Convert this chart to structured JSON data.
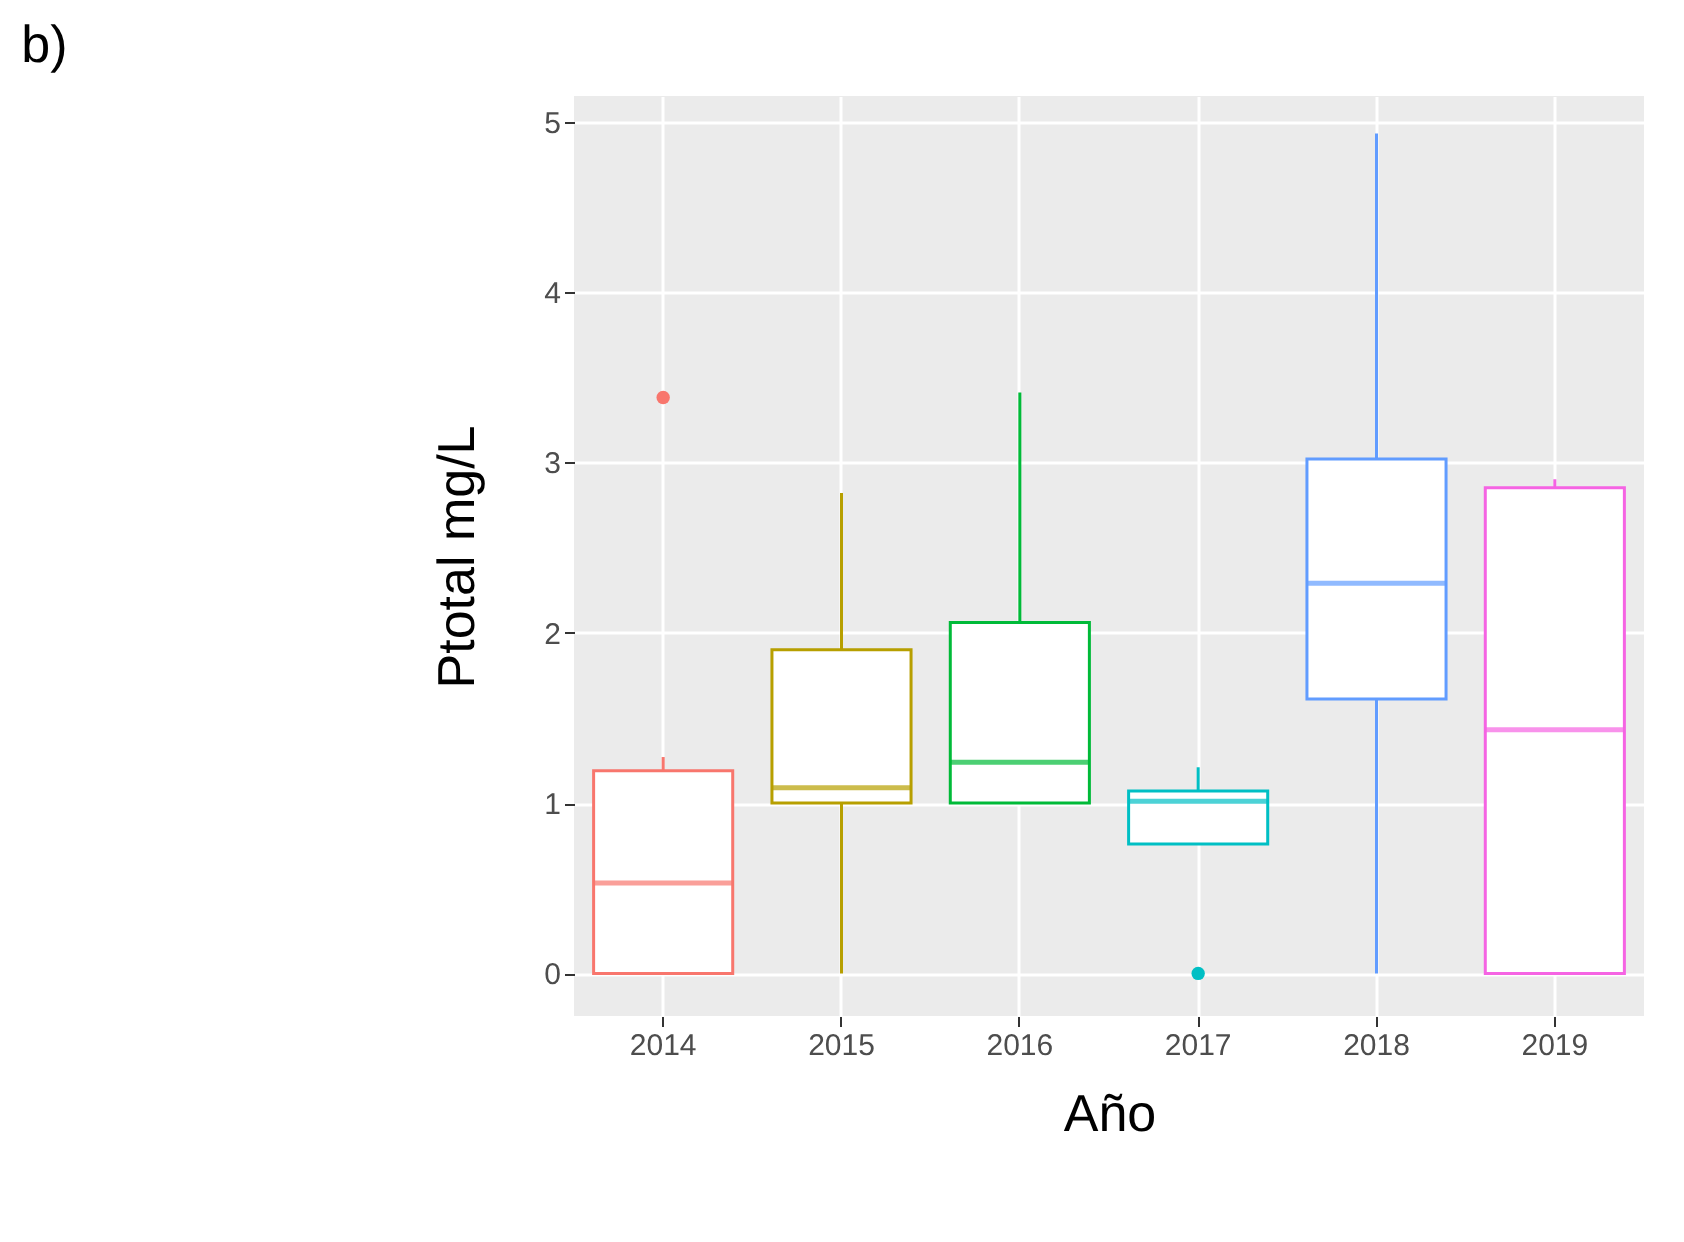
{
  "chart_data": {
    "type": "box",
    "title": "b)",
    "xlabel": "Año",
    "ylabel": "Ptotal mg/L",
    "categories": [
      "2014",
      "2015",
      "2016",
      "2017",
      "2018",
      "2019"
    ],
    "colors": [
      "#f8766d",
      "#b79f00",
      "#00ba38",
      "#00bfc4",
      "#619cff",
      "#f564e3"
    ],
    "boxes": [
      {
        "low": 0,
        "q1": 0,
        "median": 0.53,
        "q3": 1.19,
        "high": 1.27,
        "outliers": [
          3.38
        ]
      },
      {
        "low": 0,
        "q1": 1.0,
        "median": 1.09,
        "q3": 1.9,
        "high": 2.82
      },
      {
        "low": 1.0,
        "q1": 1.0,
        "median": 1.24,
        "q3": 2.06,
        "high": 3.41
      },
      {
        "low": 0.76,
        "q1": 0.76,
        "median": 1.01,
        "q3": 1.07,
        "high": 1.21,
        "outliers": [
          0
        ]
      },
      {
        "low": 0,
        "q1": 1.61,
        "median": 2.29,
        "q3": 3.02,
        "high": 4.93
      },
      {
        "low": 0,
        "q1": 0,
        "median": 1.43,
        "q3": 2.85,
        "high": 2.9
      }
    ],
    "ylim": [
      -0.25,
      5.15
    ],
    "yticks": [
      0,
      1,
      2,
      3,
      4,
      5
    ],
    "grid": true,
    "legend": false
  }
}
